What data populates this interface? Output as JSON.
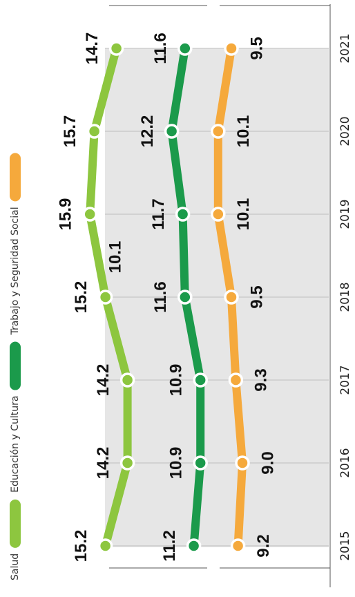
{
  "chart_data": {
    "type": "line",
    "categories": [
      "2015",
      "2016",
      "2017",
      "2018",
      "2019",
      "2020",
      "2021"
    ],
    "series": [
      {
        "name": "Salud",
        "color": "#8dc63f",
        "values": [
          15.2,
          14.2,
          14.2,
          15.2,
          15.9,
          15.7,
          14.7
        ]
      },
      {
        "name": "Educación y Cultura",
        "color": "#1b9a4b",
        "values": [
          11.2,
          10.9,
          10.9,
          11.6,
          11.7,
          12.2,
          11.6
        ]
      },
      {
        "name": "Trabajo y Seguridad Social",
        "color": "#f5a93c",
        "values": [
          9.2,
          9.0,
          9.3,
          9.5,
          10.1,
          10.1,
          9.5
        ],
        "value_labels": [
          "9.2",
          "9.0",
          "9.3",
          "9.5",
          "10.1",
          "10.1",
          "9.5"
        ]
      }
    ],
    "annotations": [
      "10.1"
    ],
    "ylim": [
      8,
      17
    ]
  }
}
